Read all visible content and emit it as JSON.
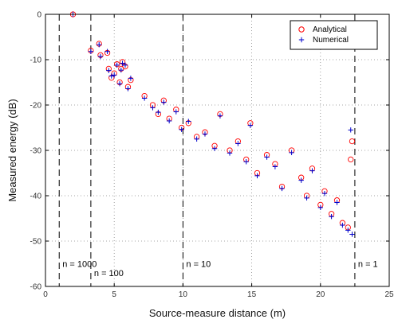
{
  "chart_data": {
    "type": "scatter",
    "title": "",
    "xlabel": "Source-measure distance (m)",
    "ylabel": "Measured energy (dB)",
    "xlim": [
      0,
      25
    ],
    "ylim": [
      -60,
      0
    ],
    "xticks": [
      "0",
      "5",
      "10",
      "15",
      "20",
      "25"
    ],
    "yticks": [
      "0",
      "-10",
      "-20",
      "-30",
      "-40",
      "-50",
      "-60"
    ],
    "grid": true,
    "grid_style": "dotted",
    "legend_position": "top-right",
    "series": [
      {
        "name": "Analytical",
        "marker": "circle",
        "color": "#ff0000",
        "x": [
          2.0,
          3.3,
          3.9,
          4.0,
          4.5,
          4.6,
          4.8,
          5.0,
          5.2,
          5.4,
          5.5,
          5.6,
          5.8,
          6.0,
          6.2,
          7.2,
          7.8,
          8.2,
          8.6,
          9.0,
          9.5,
          9.9,
          10.4,
          11.0,
          11.6,
          12.3,
          12.7,
          13.4,
          14.0,
          14.6,
          14.9,
          15.4,
          16.1,
          16.7,
          17.2,
          17.9,
          18.6,
          19.0,
          19.4,
          20.0,
          20.3,
          20.8,
          21.2,
          21.6,
          22.0,
          22.2,
          22.3
        ],
        "y": [
          0,
          -8,
          -6.5,
          -9,
          -8.5,
          -12,
          -14,
          -13,
          -11,
          -15,
          -12,
          -10.5,
          -11.5,
          -16,
          -14.5,
          -18,
          -20,
          -22,
          -19,
          -23,
          -21,
          -25,
          -24,
          -27,
          -26,
          -29,
          -22,
          -30,
          -28,
          -32,
          -24,
          -35,
          -31,
          -33,
          -38,
          -30,
          -36,
          -40,
          -34,
          -42,
          -39,
          -44,
          -41,
          -46,
          -47,
          -32,
          -28
        ]
      },
      {
        "name": "Numerical",
        "marker": "plus",
        "color": "#0000cc",
        "x": [
          2.0,
          3.3,
          3.9,
          4.0,
          4.5,
          4.6,
          4.8,
          5.0,
          5.2,
          5.4,
          5.5,
          5.6,
          5.8,
          6.0,
          6.2,
          7.2,
          7.8,
          8.2,
          8.6,
          9.0,
          9.5,
          9.9,
          10.4,
          11.0,
          11.6,
          12.3,
          12.7,
          13.4,
          14.0,
          14.6,
          14.9,
          15.4,
          16.1,
          16.7,
          17.2,
          17.9,
          18.6,
          19.0,
          19.4,
          20.0,
          20.3,
          20.8,
          21.2,
          21.6,
          22.0,
          22.2,
          22.3
        ],
        "y": [
          0,
          -8.2,
          -6.7,
          -9.3,
          -8.2,
          -12.4,
          -13.6,
          -13.4,
          -11.2,
          -15.3,
          -12.3,
          -10.8,
          -11.2,
          -16.4,
          -14.1,
          -18.5,
          -20.6,
          -21.6,
          -19.4,
          -23.5,
          -21.5,
          -25.4,
          -23.6,
          -27.5,
          -26.4,
          -29.6,
          -22.4,
          -30.6,
          -28.5,
          -32.5,
          -24.5,
          -35.6,
          -31.5,
          -33.6,
          -38.4,
          -30.5,
          -36.6,
          -40.5,
          -34.5,
          -42.6,
          -39.5,
          -44.6,
          -41.5,
          -46.5,
          -47.6,
          -25.5,
          -48.5
        ]
      }
    ]
  },
  "vertical_lines": [
    {
      "x": 1.0,
      "label": "n = 1000",
      "label_y": -55
    },
    {
      "x": 3.3,
      "label": "n = 100",
      "label_y": -57
    },
    {
      "x": 10.0,
      "label": "n = 10",
      "label_y": -55
    },
    {
      "x": 22.5,
      "label": "n = 1",
      "label_y": -55
    }
  ],
  "colors": {
    "analytical": "#ff0000",
    "numerical": "#0000cc",
    "grid": "#888888",
    "axes": "#000000"
  }
}
